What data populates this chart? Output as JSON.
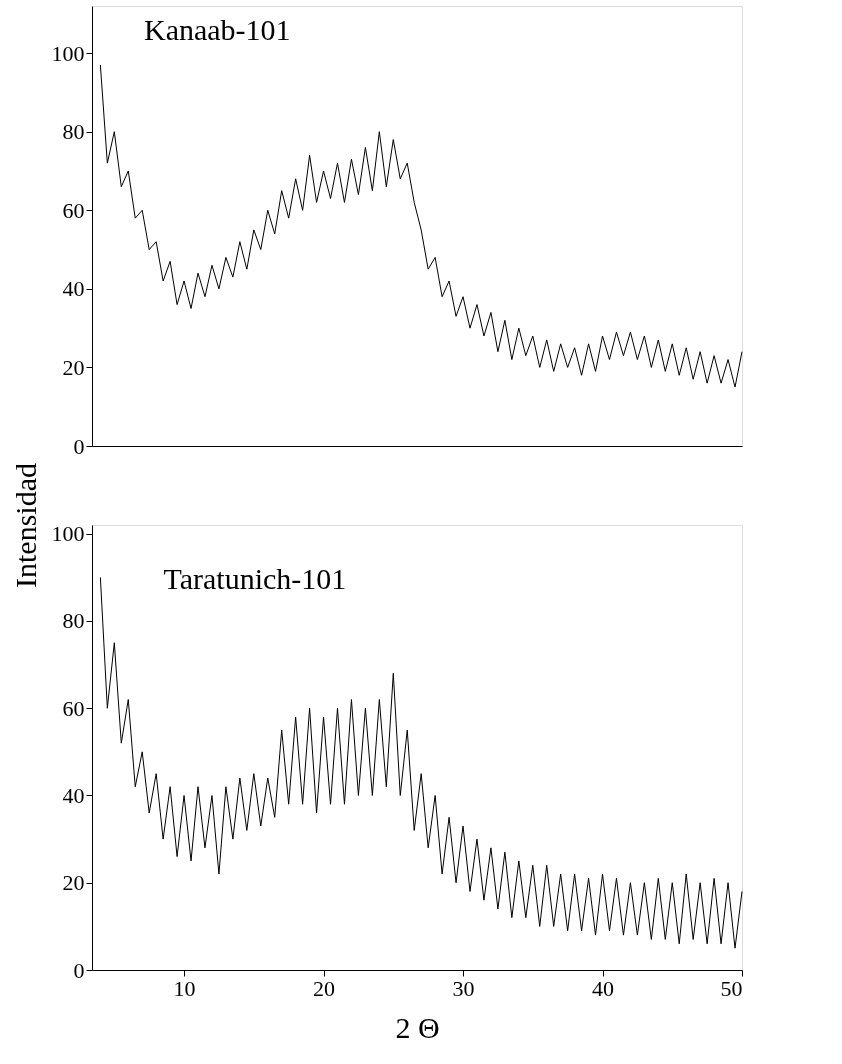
{
  "chart_data": [
    {
      "type": "line",
      "xlim": [
        3.4,
        50
      ],
      "ylim": [
        0,
        112
      ],
      "yticks": [
        0,
        20,
        40,
        60,
        80,
        100
      ],
      "grid": false,
      "marker": "none",
      "line_style": "solid",
      "tick_labels": "y",
      "x": [
        4,
        4.5,
        5,
        5.5,
        6,
        6.5,
        7,
        7.5,
        8,
        8.5,
        9,
        9.5,
        10,
        10.5,
        11,
        11.5,
        12,
        12.5,
        13,
        13.5,
        14,
        14.5,
        15,
        15.5,
        16,
        16.5,
        17,
        17.5,
        18,
        18.5,
        19,
        19.5,
        20,
        20.5,
        21,
        21.5,
        22,
        22.5,
        23,
        23.5,
        24,
        24.5,
        25,
        25.5,
        26,
        26.5,
        27,
        27.5,
        28,
        28.5,
        29,
        29.5,
        30,
        30.5,
        31,
        31.5,
        32,
        32.5,
        33,
        33.5,
        34,
        34.5,
        35,
        35.5,
        36,
        36.5,
        37,
        37.5,
        38,
        38.5,
        39,
        39.5,
        40,
        40.5,
        41,
        41.5,
        42,
        42.5,
        43,
        43.5,
        44,
        44.5,
        45,
        45.5,
        46,
        46.5,
        47,
        47.5,
        48,
        48.5,
        49,
        49.5,
        50
      ],
      "series": [
        {
          "name": "Kanaab-101",
          "color": "#000000",
          "values": [
            97,
            72,
            80,
            66,
            70,
            58,
            60,
            50,
            52,
            42,
            47,
            36,
            42,
            35,
            44,
            38,
            46,
            40,
            48,
            43,
            52,
            45,
            55,
            50,
            60,
            54,
            65,
            58,
            68,
            60,
            74,
            62,
            70,
            63,
            72,
            62,
            73,
            64,
            76,
            65,
            80,
            66,
            78,
            68,
            72,
            62,
            55,
            45,
            48,
            38,
            42,
            33,
            38,
            30,
            36,
            28,
            34,
            24,
            32,
            22,
            30,
            23,
            28,
            20,
            27,
            19,
            26,
            20,
            25,
            18,
            26,
            19,
            28,
            22,
            29,
            23,
            29,
            22,
            28,
            20,
            27,
            19,
            26,
            18,
            25,
            17,
            24,
            16,
            23,
            16,
            22,
            15,
            24
          ]
        }
      ]
    },
    {
      "type": "line",
      "xlim": [
        3.4,
        50
      ],
      "xticks": [
        10,
        20,
        30,
        40,
        50
      ],
      "ylim": [
        0,
        102
      ],
      "yticks": [
        0,
        20,
        40,
        60,
        80,
        100
      ],
      "xlabel": "2 Θ",
      "ylabel": "Intensidad",
      "grid": false,
      "marker": "none",
      "line_style": "solid",
      "x": [
        4,
        4.5,
        5,
        5.5,
        6,
        6.5,
        7,
        7.5,
        8,
        8.5,
        9,
        9.5,
        10,
        10.5,
        11,
        11.5,
        12,
        12.5,
        13,
        13.5,
        14,
        14.5,
        15,
        15.5,
        16,
        16.5,
        17,
        17.5,
        18,
        18.5,
        19,
        19.5,
        20,
        20.5,
        21,
        21.5,
        22,
        22.5,
        23,
        23.5,
        24,
        24.5,
        25,
        25.5,
        26,
        26.5,
        27,
        27.5,
        28,
        28.5,
        29,
        29.5,
        30,
        30.5,
        31,
        31.5,
        32,
        32.5,
        33,
        33.5,
        34,
        34.5,
        35,
        35.5,
        36,
        36.5,
        37,
        37.5,
        38,
        38.5,
        39,
        39.5,
        40,
        40.5,
        41,
        41.5,
        42,
        42.5,
        43,
        43.5,
        44,
        44.5,
        45,
        45.5,
        46,
        46.5,
        47,
        47.5,
        48,
        48.5,
        49,
        49.5,
        50
      ],
      "series": [
        {
          "name": "Taratunich-101",
          "color": "#000000",
          "values": [
            90,
            60,
            75,
            52,
            62,
            42,
            50,
            36,
            45,
            30,
            42,
            26,
            40,
            25,
            42,
            28,
            40,
            22,
            42,
            30,
            44,
            32,
            45,
            33,
            44,
            35,
            55,
            38,
            58,
            38,
            60,
            36,
            58,
            38,
            60,
            38,
            62,
            40,
            60,
            40,
            62,
            42,
            68,
            40,
            55,
            32,
            45,
            28,
            40,
            22,
            35,
            20,
            33,
            18,
            30,
            16,
            28,
            14,
            27,
            12,
            25,
            12,
            24,
            10,
            24,
            10,
            22,
            9,
            22,
            9,
            21,
            8,
            22,
            9,
            21,
            8,
            20,
            8,
            20,
            7,
            21,
            7,
            20,
            6,
            22,
            7,
            20,
            6,
            21,
            6,
            20,
            5,
            18
          ]
        }
      ]
    }
  ]
}
